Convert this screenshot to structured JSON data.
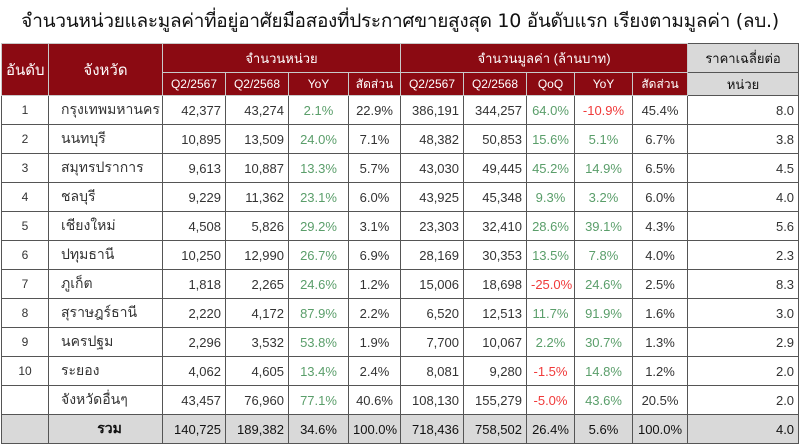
{
  "title": "จำนวนหน่วยและมูลค่าที่อยู่อาศัยมือสองที่ประกาศขายสูงสุด 10 อันดับแรก เรียงตามมูลค่า (ลบ.)",
  "colors": {
    "header_bg": "#8b0a12",
    "positive": "#5a9e6a",
    "negative": "#f03a3a",
    "total_bg": "#d9d9d9"
  },
  "headers": {
    "rank": "อันดับ",
    "province": "จังหวัด",
    "units_group": "จำนวนหน่วย",
    "value_group": "จำนวนมูลค่า (ล้านบาท)",
    "avg_price": "ราคาเฉลี่ยต่อ",
    "avg_price_unit": "หน่วย",
    "units_cols": [
      "Q2/2567",
      "Q2/2568",
      "YoY",
      "สัดส่วน"
    ],
    "value_cols": [
      "Q2/2567",
      "Q2/2568",
      "QoQ",
      "YoY",
      "สัดส่วน"
    ]
  },
  "rows": [
    {
      "rank": "1",
      "province": "กรุงเทพมหานคร",
      "u67": "42,377",
      "u68": "43,274",
      "u_yoy": "2.1%",
      "u_share": "22.9%",
      "v67": "386,191",
      "v68": "344,257",
      "v_qoq": "64.0%",
      "v_yoy": "-10.9%",
      "v_share": "45.4%",
      "avg": "8.0"
    },
    {
      "rank": "2",
      "province": "นนทบุรี",
      "u67": "10,895",
      "u68": "13,509",
      "u_yoy": "24.0%",
      "u_share": "7.1%",
      "v67": "48,382",
      "v68": "50,853",
      "v_qoq": "15.6%",
      "v_yoy": "5.1%",
      "v_share": "6.7%",
      "avg": "3.8"
    },
    {
      "rank": "3",
      "province": "สมุทรปราการ",
      "u67": "9,613",
      "u68": "10,887",
      "u_yoy": "13.3%",
      "u_share": "5.7%",
      "v67": "43,030",
      "v68": "49,445",
      "v_qoq": "45.2%",
      "v_yoy": "14.9%",
      "v_share": "6.5%",
      "avg": "4.5"
    },
    {
      "rank": "4",
      "province": "ชลบุรี",
      "u67": "9,229",
      "u68": "11,362",
      "u_yoy": "23.1%",
      "u_share": "6.0%",
      "v67": "43,925",
      "v68": "45,348",
      "v_qoq": "9.3%",
      "v_yoy": "3.2%",
      "v_share": "6.0%",
      "avg": "4.0"
    },
    {
      "rank": "5",
      "province": "เชียงใหม่",
      "u67": "4,508",
      "u68": "5,826",
      "u_yoy": "29.2%",
      "u_share": "3.1%",
      "v67": "23,303",
      "v68": "32,410",
      "v_qoq": "28.6%",
      "v_yoy": "39.1%",
      "v_share": "4.3%",
      "avg": "5.6"
    },
    {
      "rank": "6",
      "province": "ปทุมธานี",
      "u67": "10,250",
      "u68": "12,990",
      "u_yoy": "26.7%",
      "u_share": "6.9%",
      "v67": "28,169",
      "v68": "30,353",
      "v_qoq": "13.5%",
      "v_yoy": "7.8%",
      "v_share": "4.0%",
      "avg": "2.3"
    },
    {
      "rank": "7",
      "province": "ภูเก็ต",
      "u67": "1,818",
      "u68": "2,265",
      "u_yoy": "24.6%",
      "u_share": "1.2%",
      "v67": "15,006",
      "v68": "18,698",
      "v_qoq": "-25.0%",
      "v_yoy": "24.6%",
      "v_share": "2.5%",
      "avg": "8.3"
    },
    {
      "rank": "8",
      "province": "สุราษฎร์ธานี",
      "u67": "2,220",
      "u68": "4,172",
      "u_yoy": "87.9%",
      "u_share": "2.2%",
      "v67": "6,520",
      "v68": "12,513",
      "v_qoq": "11.7%",
      "v_yoy": "91.9%",
      "v_share": "1.6%",
      "avg": "3.0"
    },
    {
      "rank": "9",
      "province": "นครปฐม",
      "u67": "2,296",
      "u68": "3,532",
      "u_yoy": "53.8%",
      "u_share": "1.9%",
      "v67": "7,700",
      "v68": "10,067",
      "v_qoq": "2.2%",
      "v_yoy": "30.7%",
      "v_share": "1.3%",
      "avg": "2.9"
    },
    {
      "rank": "10",
      "province": "ระยอง",
      "u67": "4,062",
      "u68": "4,605",
      "u_yoy": "13.4%",
      "u_share": "2.4%",
      "v67": "8,081",
      "v68": "9,280",
      "v_qoq": "-1.5%",
      "v_yoy": "14.8%",
      "v_share": "1.2%",
      "avg": "2.0"
    },
    {
      "rank": "",
      "province": "จังหวัดอื่นๆ",
      "u67": "43,457",
      "u68": "76,960",
      "u_yoy": "77.1%",
      "u_share": "40.6%",
      "v67": "108,130",
      "v68": "155,279",
      "v_qoq": "-5.0%",
      "v_yoy": "43.6%",
      "v_share": "20.5%",
      "avg": "2.0"
    }
  ],
  "total": {
    "rank": "",
    "province": "รวม",
    "u67": "140,725",
    "u68": "189,382",
    "u_yoy": "34.6%",
    "u_share": "100.0%",
    "v67": "718,436",
    "v68": "758,502",
    "v_qoq": "26.4%",
    "v_yoy": "5.6%",
    "v_share": "100.0%",
    "avg": "4.0"
  }
}
